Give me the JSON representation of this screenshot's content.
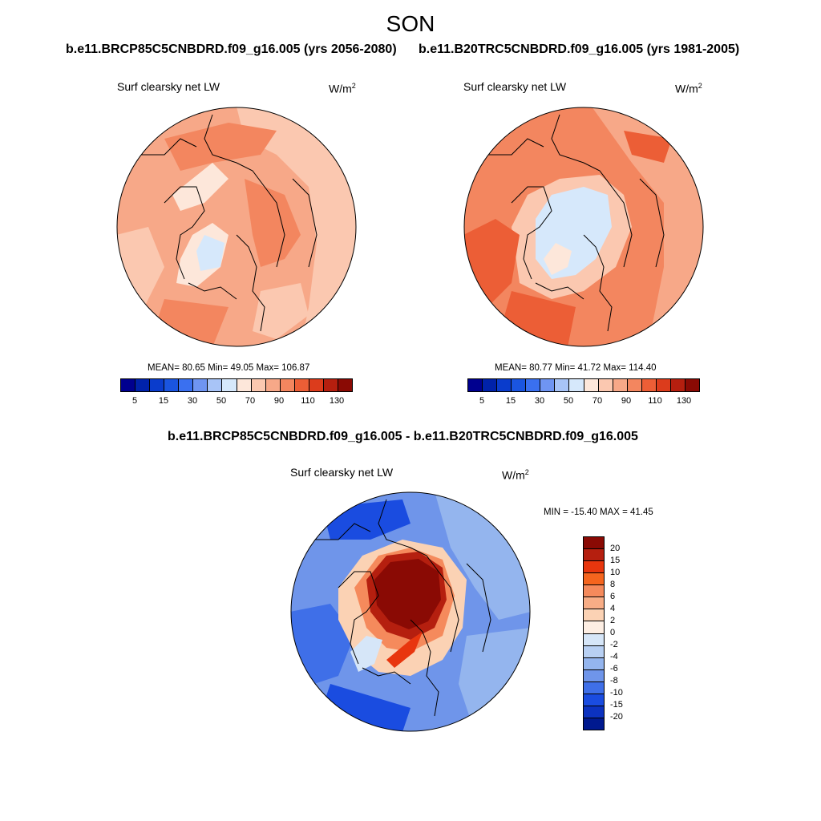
{
  "title": "SON",
  "panels": {
    "left": {
      "run_label": "b.e11.BRCP85C5CNBDRD.f09_g16.005 (yrs 2056-2080)",
      "variable": "Surf clearsky net LW",
      "units": "W/m",
      "units_exp": "2",
      "stats": "MEAN=  80.65  Min=  49.05  Max= 106.87"
    },
    "right": {
      "run_label": "b.e11.B20TRC5CNBDRD.f09_g16.005 (yrs 1981-2005)",
      "variable": "Surf clearsky net LW",
      "units": "W/m",
      "units_exp": "2",
      "stats": "MEAN=  80.77  Min=  41.72  Max= 114.40"
    },
    "diff": {
      "run_label": "b.e11.BRCP85C5CNBDRD.f09_g16.005 - b.e11.B20TRC5CNBDRD.f09_g16.005",
      "variable": "Surf clearsky net LW",
      "units": "W/m",
      "units_exp": "2",
      "stats": "MIN = -15.40 MAX =  41.45"
    }
  },
  "colorbar_abs": {
    "colors": [
      "#00008f",
      "#0022aa",
      "#0a3ccc",
      "#1a55e0",
      "#3a70f0",
      "#6f95f2",
      "#a8c4f7",
      "#d6e8fb",
      "#fde7da",
      "#fbc8b0",
      "#f7a888",
      "#f3865f",
      "#ec5e36",
      "#dc3c1c",
      "#b51f0f",
      "#8a0a04"
    ],
    "tick_labels": [
      "5",
      "15",
      "30",
      "50",
      "70",
      "90",
      "110",
      "130"
    ]
  },
  "colorbar_diff": {
    "colors": [
      "#8a0a04",
      "#b51f0f",
      "#e8360e",
      "#f5651e",
      "#f58a5c",
      "#f8ad86",
      "#fbd2b4",
      "#fdeee3",
      "#d6e6f8",
      "#b8d0f3",
      "#94b5ee",
      "#6f95ea",
      "#3f6fe8",
      "#1a4ce0",
      "#0c32c0",
      "#00198f"
    ],
    "tick_labels": [
      "20",
      "15",
      "10",
      "8",
      "6",
      "4",
      "2",
      "0",
      "-2",
      "-4",
      "-6",
      "-8",
      "-10",
      "-15",
      "-20"
    ]
  }
}
